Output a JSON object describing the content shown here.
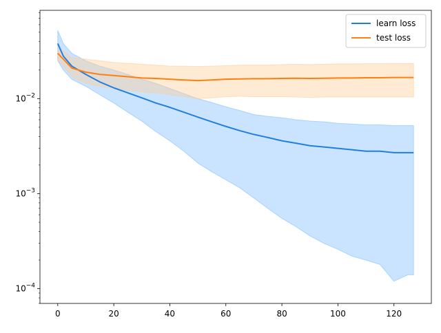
{
  "chart_data": {
    "type": "line",
    "title": "",
    "xlabel": "",
    "ylabel": "",
    "xlim": [
      -6.35,
      133.35
    ],
    "ylim": [
      7e-05,
      0.085
    ],
    "yscale": "log",
    "grid": false,
    "legend_position": "top-right",
    "x_ticks": [
      0,
      20,
      40,
      60,
      80,
      100,
      120
    ],
    "x_tick_labels": [
      "0",
      "20",
      "40",
      "60",
      "80",
      "100",
      "120"
    ],
    "y_ticks": [
      0.0001,
      0.001,
      0.01
    ],
    "y_tick_labels": [
      {
        "base": "10",
        "exp": "−4"
      },
      {
        "base": "10",
        "exp": "−3"
      },
      {
        "base": "10",
        "exp": "−2"
      }
    ],
    "series": [
      {
        "name": "learn loss",
        "color": "#1f7fe0",
        "band_color": "#80bfff",
        "x": [
          0,
          2,
          5,
          10,
          15,
          20,
          25,
          30,
          35,
          40,
          45,
          50,
          55,
          60,
          65,
          70,
          75,
          80,
          85,
          90,
          95,
          100,
          105,
          110,
          115,
          120,
          125,
          127
        ],
        "mean": [
          0.038,
          0.028,
          0.022,
          0.018,
          0.015,
          0.013,
          0.0115,
          0.0102,
          0.009,
          0.0081,
          0.0072,
          0.0064,
          0.0057,
          0.0051,
          0.0046,
          0.0042,
          0.0039,
          0.0036,
          0.0034,
          0.0032,
          0.0031,
          0.003,
          0.0029,
          0.0028,
          0.0028,
          0.0027,
          0.0027,
          0.0027
        ],
        "upper": [
          0.052,
          0.038,
          0.03,
          0.025,
          0.022,
          0.02,
          0.018,
          0.016,
          0.0145,
          0.0128,
          0.0113,
          0.01,
          0.0091,
          0.0082,
          0.0075,
          0.0068,
          0.0065,
          0.0063,
          0.006,
          0.0058,
          0.0057,
          0.0055,
          0.0054,
          0.0053,
          0.0053,
          0.0052,
          0.0052,
          0.0052
        ],
        "lower": [
          0.025,
          0.02,
          0.016,
          0.0135,
          0.011,
          0.009,
          0.0072,
          0.0058,
          0.0045,
          0.0036,
          0.0028,
          0.0021,
          0.0017,
          0.0014,
          0.00115,
          0.0009,
          0.0007,
          0.00055,
          0.00045,
          0.00036,
          0.0003,
          0.00026,
          0.00022,
          0.0002,
          0.00018,
          0.00012,
          0.00014,
          0.00014
        ]
      },
      {
        "name": "test loss",
        "color": "#ff7f0e",
        "band_color": "#ffcc99",
        "x": [
          0,
          2,
          5,
          10,
          15,
          20,
          25,
          30,
          35,
          40,
          45,
          50,
          55,
          60,
          65,
          70,
          75,
          80,
          85,
          90,
          95,
          100,
          105,
          110,
          115,
          120,
          125,
          127
        ],
        "mean": [
          0.03,
          0.026,
          0.021,
          0.019,
          0.018,
          0.0175,
          0.017,
          0.0165,
          0.0163,
          0.016,
          0.0157,
          0.0155,
          0.0157,
          0.016,
          0.0161,
          0.0162,
          0.0162,
          0.0163,
          0.0164,
          0.0163,
          0.0164,
          0.0165,
          0.0165,
          0.0166,
          0.0166,
          0.0167,
          0.0167,
          0.0167
        ],
        "upper": [
          0.034,
          0.032,
          0.027,
          0.026,
          0.025,
          0.024,
          0.0235,
          0.023,
          0.0225,
          0.022,
          0.022,
          0.0218,
          0.022,
          0.0222,
          0.0225,
          0.0225,
          0.0225,
          0.0228,
          0.023,
          0.0228,
          0.023,
          0.0232,
          0.0232,
          0.0233,
          0.0233,
          0.0234,
          0.0234,
          0.0234
        ],
        "lower": [
          0.025,
          0.022,
          0.017,
          0.0145,
          0.0135,
          0.0128,
          0.0122,
          0.0118,
          0.0115,
          0.011,
          0.0105,
          0.01,
          0.0102,
          0.0105,
          0.0106,
          0.0105,
          0.0105,
          0.0105,
          0.0104,
          0.0103,
          0.0104,
          0.0104,
          0.0104,
          0.0104,
          0.0104,
          0.0104,
          0.0104,
          0.0104
        ]
      }
    ]
  }
}
